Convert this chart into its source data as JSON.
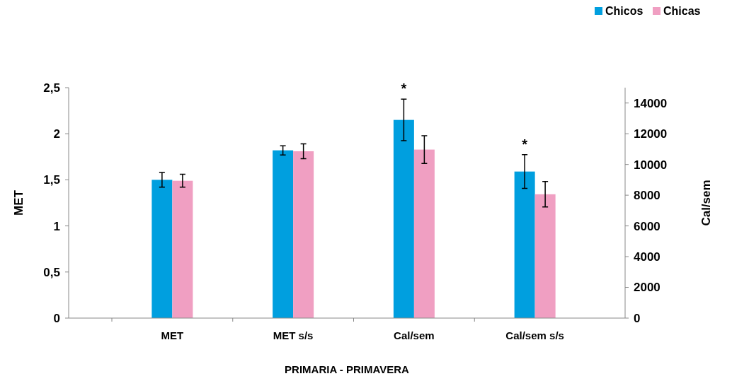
{
  "chart_data": {
    "type": "bar",
    "xlabel": "PRIMARIA - PRIMAVERA",
    "ylabel": "MET",
    "y2label": "Cal/sem",
    "categories": [
      "MET",
      "MET s/s",
      "Cal/sem",
      "Cal/sem s/s"
    ],
    "series": [
      {
        "name": "Chicos",
        "color": "#009fdf",
        "values": [
          1.5,
          1.82,
          null,
          null
        ],
        "errors": [
          0.08,
          0.05,
          null,
          null
        ]
      },
      {
        "name": "Chicas",
        "color": "#f09fc2",
        "values": [
          1.49,
          1.81,
          null,
          null
        ],
        "errors": [
          0.07,
          0.08,
          null,
          null
        ]
      },
      {
        "color": "#009fdf",
        "axis": "y2",
        "values": [
          null,
          null,
          12900,
          9540
        ],
        "errors": [
          null,
          null,
          1350,
          1100
        ]
      },
      {
        "color": "#f09fc2",
        "axis": "y2",
        "values": [
          null,
          null,
          10970,
          8060
        ],
        "errors": [
          null,
          null,
          900,
          830
        ]
      }
    ],
    "ylim": [
      0,
      2.5
    ],
    "yticks": [
      0,
      {
        "value": 0.5,
        "label": "0,5"
      },
      1,
      {
        "value": 1.5,
        "label": "1,5"
      },
      2,
      {
        "value": 2.5,
        "label": "2,5"
      }
    ],
    "y2lim": [
      0,
      15000
    ],
    "y2ticks": [
      0,
      2000,
      4000,
      6000,
      8000,
      10000,
      12000,
      14000
    ],
    "annotations": [
      "*",
      "*"
    ],
    "grid": false,
    "legend": "top right"
  }
}
